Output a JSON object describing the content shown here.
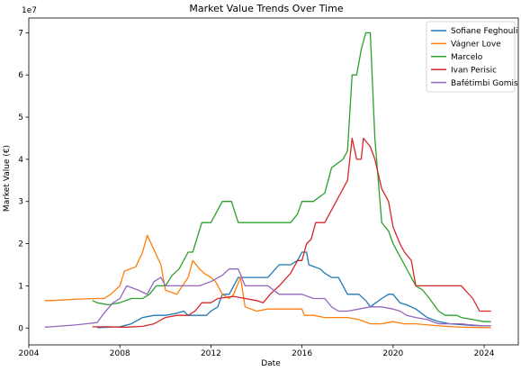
{
  "chart_data": {
    "type": "line",
    "title": "Market Value Trends Over Time",
    "xlabel": "Date",
    "ylabel": "Market Value (€)",
    "y_multiplier_label": "1e7",
    "y_scale": 10000000,
    "xlim": [
      2004.0,
      2025.5
    ],
    "ylim": [
      -0.4,
      7.35
    ],
    "x_ticks": [
      2004,
      2008,
      2012,
      2016,
      2020,
      2024
    ],
    "y_ticks": [
      0,
      1,
      2,
      3,
      4,
      5,
      6,
      7
    ],
    "grid": false,
    "legend_position": "top-right",
    "series": [
      {
        "name": "Sofiane Feghouli",
        "color": "#1f77b4",
        "points": [
          [
            2007.0,
            0.01
          ],
          [
            2008.0,
            0.03
          ],
          [
            2008.5,
            0.1
          ],
          [
            2009.0,
            0.25
          ],
          [
            2009.5,
            0.3
          ],
          [
            2010.0,
            0.3
          ],
          [
            2010.5,
            0.35
          ],
          [
            2010.8,
            0.4
          ],
          [
            2011.0,
            0.3
          ],
          [
            2011.5,
            0.3
          ],
          [
            2011.8,
            0.3
          ],
          [
            2012.0,
            0.4
          ],
          [
            2012.3,
            0.5
          ],
          [
            2012.5,
            0.8
          ],
          [
            2012.8,
            0.8
          ],
          [
            2013.0,
            1.0
          ],
          [
            2013.2,
            1.2
          ],
          [
            2013.5,
            1.2
          ],
          [
            2014.0,
            1.2
          ],
          [
            2014.5,
            1.2
          ],
          [
            2015.0,
            1.5
          ],
          [
            2015.5,
            1.5
          ],
          [
            2015.8,
            1.6
          ],
          [
            2016.0,
            1.8
          ],
          [
            2016.2,
            1.8
          ],
          [
            2016.3,
            1.5
          ],
          [
            2016.8,
            1.4
          ],
          [
            2017.0,
            1.3
          ],
          [
            2017.3,
            1.2
          ],
          [
            2017.6,
            1.2
          ],
          [
            2018.0,
            0.8
          ],
          [
            2018.5,
            0.8
          ],
          [
            2018.8,
            0.65
          ],
          [
            2019.0,
            0.5
          ],
          [
            2019.5,
            0.7
          ],
          [
            2019.8,
            0.8
          ],
          [
            2020.0,
            0.8
          ],
          [
            2020.3,
            0.6
          ],
          [
            2020.6,
            0.55
          ],
          [
            2021.0,
            0.45
          ],
          [
            2021.5,
            0.25
          ],
          [
            2022.0,
            0.15
          ],
          [
            2022.5,
            0.1
          ],
          [
            2023.0,
            0.08
          ],
          [
            2023.5,
            0.06
          ],
          [
            2024.0,
            0.05
          ],
          [
            2024.3,
            0.05
          ]
        ]
      },
      {
        "name": "Vágner Love",
        "color": "#ff7f0e",
        "points": [
          [
            2004.7,
            0.65
          ],
          [
            2005.0,
            0.65
          ],
          [
            2006.0,
            0.68
          ],
          [
            2007.0,
            0.7
          ],
          [
            2007.3,
            0.7
          ],
          [
            2007.6,
            0.8
          ],
          [
            2008.0,
            1.0
          ],
          [
            2008.2,
            1.35
          ],
          [
            2008.7,
            1.45
          ],
          [
            2009.0,
            1.8
          ],
          [
            2009.2,
            2.2
          ],
          [
            2009.8,
            1.5
          ],
          [
            2010.0,
            0.9
          ],
          [
            2010.5,
            0.8
          ],
          [
            2011.0,
            1.2
          ],
          [
            2011.2,
            1.6
          ],
          [
            2011.5,
            1.4
          ],
          [
            2011.7,
            1.3
          ],
          [
            2012.0,
            1.2
          ],
          [
            2012.2,
            1.1
          ],
          [
            2012.5,
            0.8
          ],
          [
            2012.8,
            0.7
          ],
          [
            2013.0,
            0.8
          ],
          [
            2013.3,
            1.2
          ],
          [
            2013.5,
            0.5
          ],
          [
            2014.0,
            0.4
          ],
          [
            2014.5,
            0.45
          ],
          [
            2015.0,
            0.45
          ],
          [
            2015.5,
            0.45
          ],
          [
            2016.0,
            0.45
          ],
          [
            2016.1,
            0.3
          ],
          [
            2016.5,
            0.3
          ],
          [
            2017.0,
            0.25
          ],
          [
            2018.0,
            0.25
          ],
          [
            2018.5,
            0.2
          ],
          [
            2019.0,
            0.1
          ],
          [
            2019.5,
            0.1
          ],
          [
            2020.0,
            0.15
          ],
          [
            2020.5,
            0.1
          ],
          [
            2021.0,
            0.1
          ],
          [
            2022.0,
            0.05
          ],
          [
            2023.0,
            0.02
          ],
          [
            2024.0,
            0.01
          ],
          [
            2024.3,
            0.01
          ]
        ]
      },
      {
        "name": "Marcelo",
        "color": "#2ca02c",
        "points": [
          [
            2006.8,
            0.65
          ],
          [
            2007.0,
            0.6
          ],
          [
            2007.5,
            0.55
          ],
          [
            2008.0,
            0.6
          ],
          [
            2008.5,
            0.7
          ],
          [
            2009.0,
            0.7
          ],
          [
            2009.3,
            0.8
          ],
          [
            2009.6,
            1.0
          ],
          [
            2010.0,
            1.0
          ],
          [
            2010.3,
            1.25
          ],
          [
            2010.6,
            1.4
          ],
          [
            2011.0,
            1.8
          ],
          [
            2011.2,
            1.8
          ],
          [
            2011.6,
            2.5
          ],
          [
            2012.0,
            2.5
          ],
          [
            2012.5,
            3.0
          ],
          [
            2012.9,
            3.0
          ],
          [
            2013.2,
            2.5
          ],
          [
            2014.0,
            2.5
          ],
          [
            2015.0,
            2.5
          ],
          [
            2015.5,
            2.5
          ],
          [
            2015.8,
            2.7
          ],
          [
            2016.0,
            3.0
          ],
          [
            2016.5,
            3.0
          ],
          [
            2017.0,
            3.2
          ],
          [
            2017.3,
            3.8
          ],
          [
            2017.8,
            4.0
          ],
          [
            2018.0,
            4.2
          ],
          [
            2018.2,
            6.0
          ],
          [
            2018.4,
            6.0
          ],
          [
            2018.6,
            6.6
          ],
          [
            2018.8,
            7.0
          ],
          [
            2019.0,
            7.0
          ],
          [
            2019.2,
            4.5
          ],
          [
            2019.5,
            2.5
          ],
          [
            2019.8,
            2.3
          ],
          [
            2020.0,
            2.0
          ],
          [
            2020.5,
            1.5
          ],
          [
            2021.0,
            1.0
          ],
          [
            2021.3,
            0.9
          ],
          [
            2021.6,
            0.7
          ],
          [
            2022.0,
            0.4
          ],
          [
            2022.3,
            0.3
          ],
          [
            2022.8,
            0.3
          ],
          [
            2023.0,
            0.25
          ],
          [
            2023.5,
            0.2
          ],
          [
            2024.0,
            0.15
          ],
          [
            2024.3,
            0.15
          ]
        ]
      },
      {
        "name": "Ivan Perisic",
        "color": "#d62728",
        "points": [
          [
            2006.8,
            0.03
          ],
          [
            2007.0,
            0.03
          ],
          [
            2007.5,
            0.03
          ],
          [
            2008.0,
            0.02
          ],
          [
            2008.3,
            0.02
          ],
          [
            2009.0,
            0.04
          ],
          [
            2009.5,
            0.1
          ],
          [
            2010.0,
            0.25
          ],
          [
            2010.5,
            0.3
          ],
          [
            2011.0,
            0.3
          ],
          [
            2011.3,
            0.4
          ],
          [
            2011.6,
            0.6
          ],
          [
            2012.0,
            0.6
          ],
          [
            2012.3,
            0.7
          ],
          [
            2013.0,
            0.75
          ],
          [
            2013.5,
            0.7
          ],
          [
            2014.0,
            0.65
          ],
          [
            2014.3,
            0.6
          ],
          [
            2014.6,
            0.8
          ],
          [
            2015.0,
            1.0
          ],
          [
            2015.5,
            1.3
          ],
          [
            2015.8,
            1.6
          ],
          [
            2016.0,
            1.6
          ],
          [
            2016.2,
            2.0
          ],
          [
            2016.4,
            2.1
          ],
          [
            2016.6,
            2.5
          ],
          [
            2017.0,
            2.5
          ],
          [
            2017.5,
            3.0
          ],
          [
            2018.0,
            3.5
          ],
          [
            2018.2,
            4.5
          ],
          [
            2018.4,
            4.0
          ],
          [
            2018.6,
            4.0
          ],
          [
            2018.7,
            4.5
          ],
          [
            2019.0,
            4.3
          ],
          [
            2019.2,
            4.0
          ],
          [
            2019.5,
            3.3
          ],
          [
            2019.8,
            3.0
          ],
          [
            2020.0,
            2.4
          ],
          [
            2020.3,
            2.0
          ],
          [
            2020.5,
            1.8
          ],
          [
            2020.8,
            1.6
          ],
          [
            2021.0,
            1.0
          ],
          [
            2021.5,
            1.0
          ],
          [
            2022.0,
            1.0
          ],
          [
            2022.5,
            1.0
          ],
          [
            2023.0,
            1.0
          ],
          [
            2023.5,
            0.7
          ],
          [
            2023.8,
            0.4
          ],
          [
            2024.0,
            0.4
          ],
          [
            2024.3,
            0.4
          ]
        ]
      },
      {
        "name": "Bafétimbi Gomis",
        "color": "#9467bd",
        "points": [
          [
            2004.7,
            0.02
          ],
          [
            2005.0,
            0.03
          ],
          [
            2005.5,
            0.05
          ],
          [
            2006.0,
            0.07
          ],
          [
            2006.5,
            0.1
          ],
          [
            2007.0,
            0.13
          ],
          [
            2007.3,
            0.35
          ],
          [
            2007.7,
            0.6
          ],
          [
            2008.0,
            0.7
          ],
          [
            2008.3,
            1.0
          ],
          [
            2008.8,
            0.9
          ],
          [
            2009.2,
            0.8
          ],
          [
            2009.5,
            1.1
          ],
          [
            2009.8,
            1.2
          ],
          [
            2010.0,
            1.0
          ],
          [
            2010.5,
            1.0
          ],
          [
            2011.0,
            1.0
          ],
          [
            2011.5,
            1.0
          ],
          [
            2012.0,
            1.1
          ],
          [
            2012.5,
            1.25
          ],
          [
            2012.8,
            1.4
          ],
          [
            2013.2,
            1.4
          ],
          [
            2013.5,
            1.0
          ],
          [
            2014.0,
            1.0
          ],
          [
            2014.5,
            1.0
          ],
          [
            2015.0,
            0.8
          ],
          [
            2015.5,
            0.8
          ],
          [
            2016.0,
            0.8
          ],
          [
            2016.5,
            0.7
          ],
          [
            2017.0,
            0.7
          ],
          [
            2017.3,
            0.5
          ],
          [
            2017.6,
            0.4
          ],
          [
            2018.0,
            0.4
          ],
          [
            2018.5,
            0.45
          ],
          [
            2019.0,
            0.5
          ],
          [
            2019.5,
            0.5
          ],
          [
            2020.0,
            0.45
          ],
          [
            2020.3,
            0.4
          ],
          [
            2020.6,
            0.3
          ],
          [
            2021.0,
            0.25
          ],
          [
            2021.5,
            0.2
          ],
          [
            2022.0,
            0.1
          ],
          [
            2022.5,
            0.1
          ],
          [
            2023.0,
            0.1
          ],
          [
            2023.3,
            0.08
          ],
          [
            2024.0,
            0.05
          ],
          [
            2024.3,
            0.05
          ]
        ]
      }
    ]
  }
}
